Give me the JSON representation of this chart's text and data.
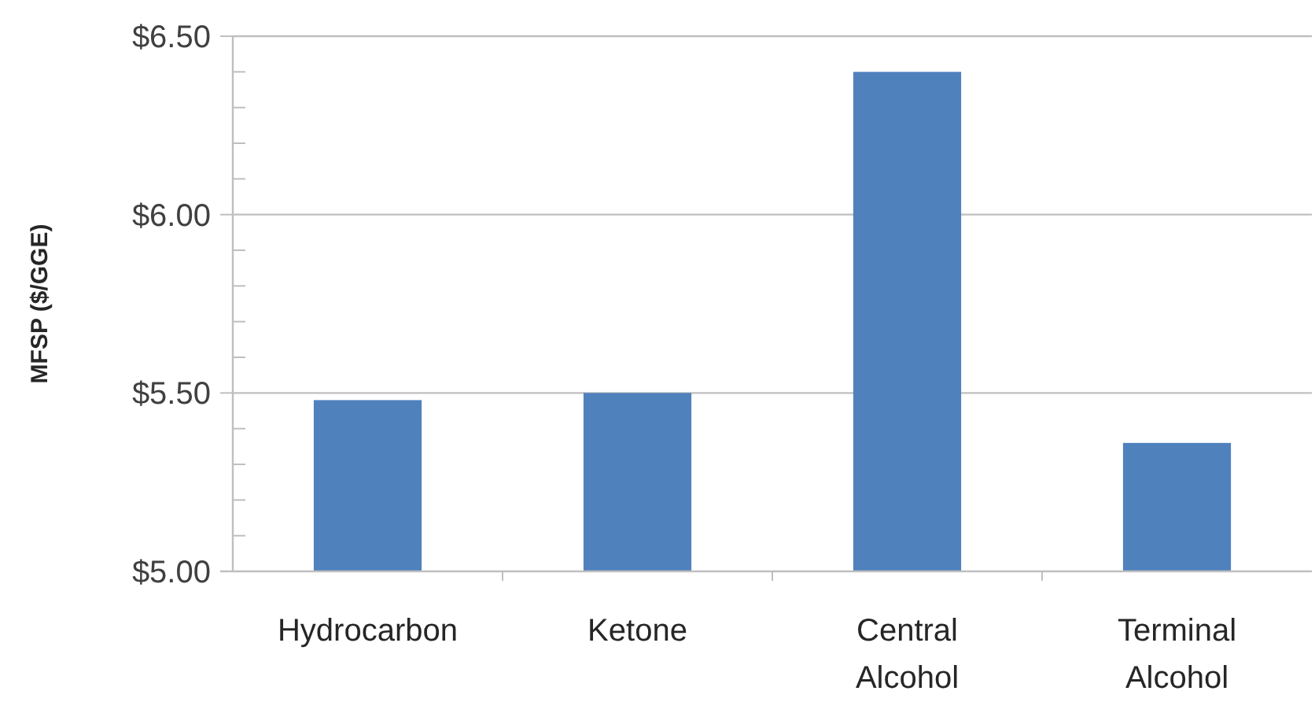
{
  "chart_data": {
    "type": "bar",
    "ylabel": "MFSP ($/GGE)",
    "categories": [
      "Hydrocarbon",
      "Ketone",
      "Central Alcohol",
      "Terminal Alcohol"
    ],
    "values": [
      5.48,
      5.5,
      6.4,
      5.36
    ],
    "color": "#4f81bd",
    "ylim": [
      5,
      6.5
    ],
    "yticks": [
      {
        "value": 5,
        "label": "$5.00"
      },
      {
        "value": 5.1,
        "label": null
      },
      {
        "value": 5.2,
        "label": null
      },
      {
        "value": 5.3,
        "label": null
      },
      {
        "value": 5.4,
        "label": null
      },
      {
        "value": 5.5,
        "label": "$5.50"
      },
      {
        "value": 5.6,
        "label": null
      },
      {
        "value": 5.7,
        "label": null
      },
      {
        "value": 5.8,
        "label": null
      },
      {
        "value": 5.9,
        "label": null
      },
      {
        "value": 6,
        "label": "$6.00"
      },
      {
        "value": 6.1,
        "label": null
      },
      {
        "value": 6.2,
        "label": null
      },
      {
        "value": 6.3,
        "label": null
      },
      {
        "value": 6.4,
        "label": null
      },
      {
        "value": 6.5,
        "label": "$6.50"
      }
    ],
    "grid": "y"
  }
}
